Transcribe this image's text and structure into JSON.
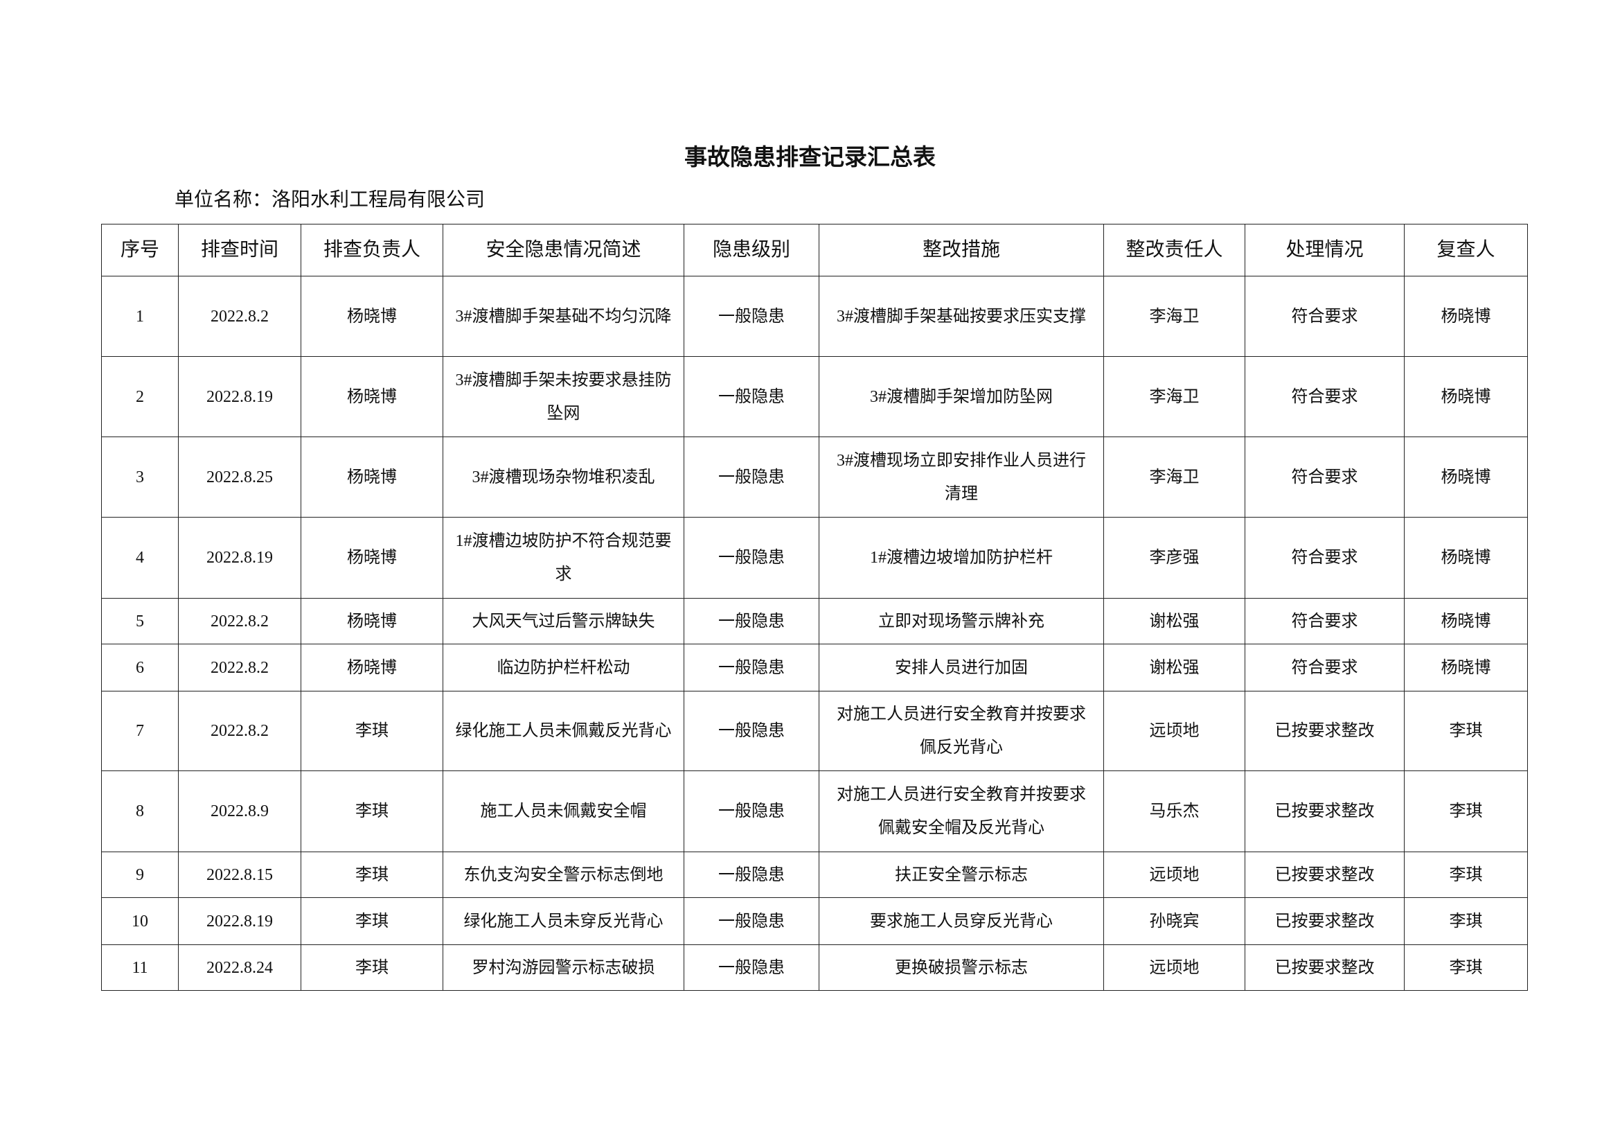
{
  "title": "事故隐患排查记录汇总表",
  "unit_name": "单位名称：洛阳水利工程局有限公司",
  "table": {
    "headers": [
      "序号",
      "排查时间",
      "排查负责人",
      "安全隐患情况简述",
      "隐患级别",
      "整改措施",
      "整改责任人",
      "处理情况",
      "复查人"
    ],
    "rows": [
      [
        "1",
        "2022.8.2",
        "杨晓博",
        "3#渡槽脚手架基础不均匀沉降",
        "一般隐患",
        "3#渡槽脚手架基础按要求压实支撑",
        "李海卫",
        "符合要求",
        "杨晓博"
      ],
      [
        "2",
        "2022.8.19",
        "杨晓博",
        "3#渡槽脚手架未按要求悬挂防坠网",
        "一般隐患",
        "3#渡槽脚手架增加防坠网",
        "李海卫",
        "符合要求",
        "杨晓博"
      ],
      [
        "3",
        "2022.8.25",
        "杨晓博",
        "3#渡槽现场杂物堆积凌乱",
        "一般隐患",
        "3#渡槽现场立即安排作业人员进行清理",
        "李海卫",
        "符合要求",
        "杨晓博"
      ],
      [
        "4",
        "2022.8.19",
        "杨晓博",
        "1#渡槽边坡防护不符合规范要求",
        "一般隐患",
        "1#渡槽边坡增加防护栏杆",
        "李彦强",
        "符合要求",
        "杨晓博"
      ],
      [
        "5",
        "2022.8.2",
        "杨晓博",
        "大风天气过后警示牌缺失",
        "一般隐患",
        "立即对现场警示牌补充",
        "谢松强",
        "符合要求",
        "杨晓博"
      ],
      [
        "6",
        "2022.8.2",
        "杨晓博",
        "临边防护栏杆松动",
        "一般隐患",
        "安排人员进行加固",
        "谢松强",
        "符合要求",
        "杨晓博"
      ],
      [
        "7",
        "2022.8.2",
        "李琪",
        "绿化施工人员未佩戴反光背心",
        "一般隐患",
        "对施工人员进行安全教育并按要求佩反光背心",
        "远顷地",
        "已按要求整改",
        "李琪"
      ],
      [
        "8",
        "2022.8.9",
        "李琪",
        "施工人员未佩戴安全帽",
        "一般隐患",
        "对施工人员进行安全教育并按要求佩戴安全帽及反光背心",
        "马乐杰",
        "已按要求整改",
        "李琪"
      ],
      [
        "9",
        "2022.8.15",
        "李琪",
        "东仇支沟安全警示标志倒地",
        "一般隐患",
        "扶正安全警示标志",
        "远顷地",
        "已按要求整改",
        "李琪"
      ],
      [
        "10",
        "2022.8.19",
        "李琪",
        "绿化施工人员未穿反光背心",
        "一般隐患",
        "要求施工人员穿反光背心",
        "孙晓宾",
        "已按要求整改",
        "李琪"
      ],
      [
        "11",
        "2022.8.24",
        "李琪",
        "罗村沟游园警示标志破损",
        "一般隐患",
        "更换破损警示标志",
        "远顷地",
        "已按要求整改",
        "李琪"
      ]
    ]
  }
}
